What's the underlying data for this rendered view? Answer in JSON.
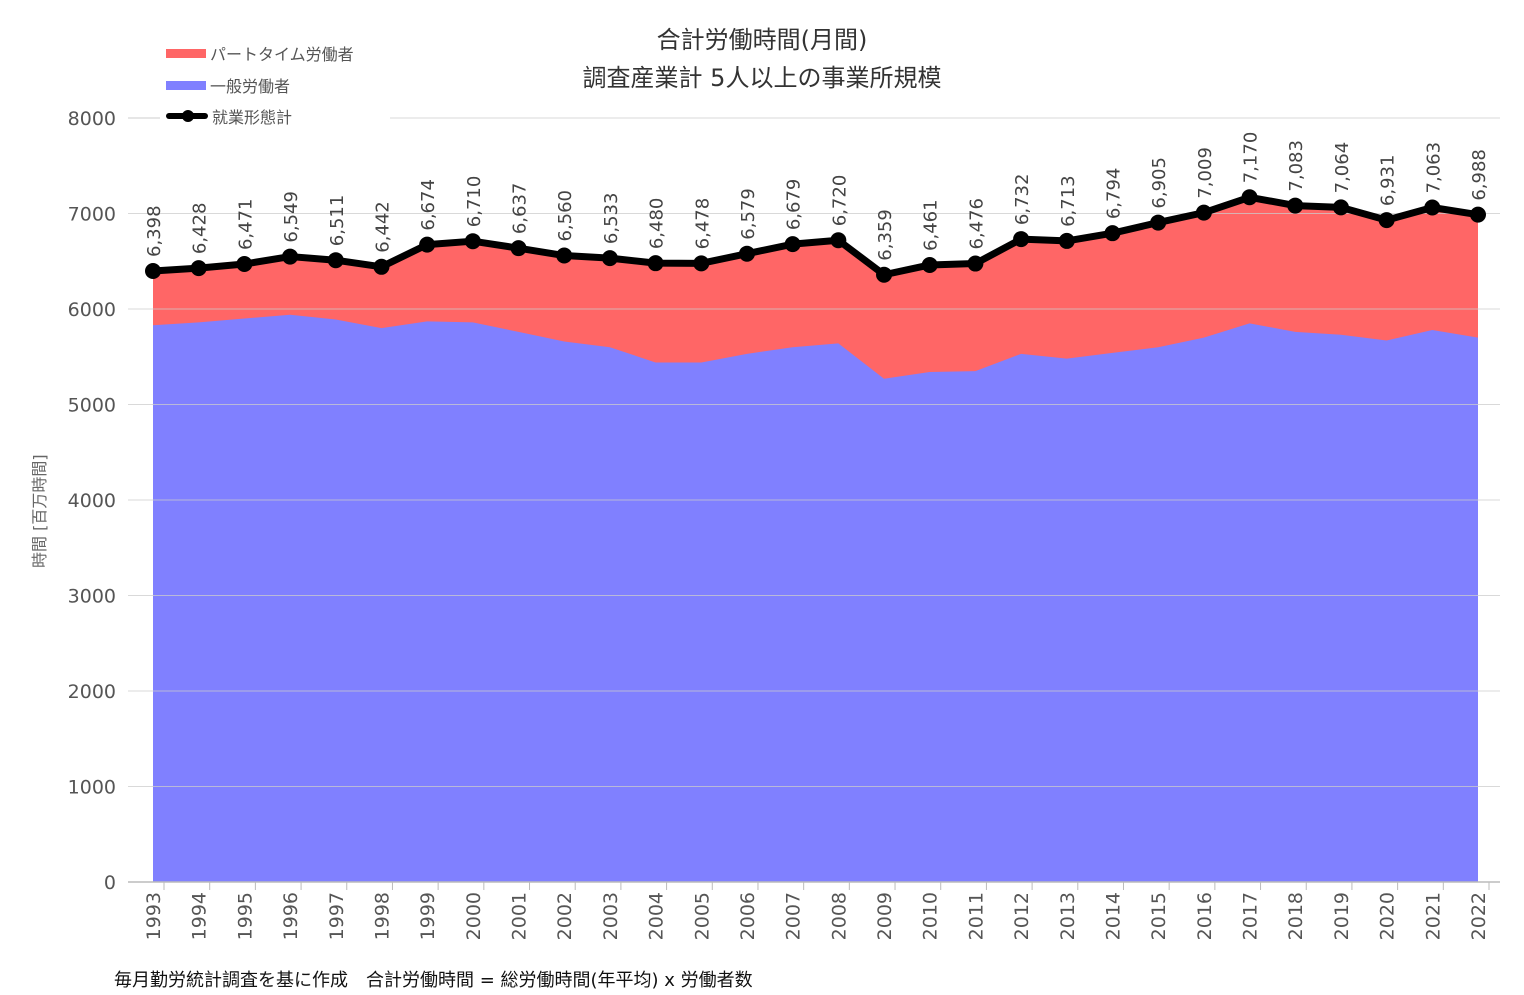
{
  "title_line1": "合計労働時間(月間)",
  "title_line2": "調査産業計 5人以上の事業所規模",
  "y_axis_label": "時間 [百万時間]",
  "footer_text": "毎月勤労統計調査を基に作成　合計労働時間 = 総労働時間(年平均) x 労働者数",
  "legend": [
    {
      "label": "パートタイム労働者",
      "color": "#ff6666"
    },
    {
      "label": "一般労働者",
      "color": "#8080ff"
    },
    {
      "label": "就業形態計",
      "color": "#000000"
    }
  ],
  "chart_data": {
    "type": "area",
    "ylim": [
      0,
      8000
    ],
    "yticks": [
      0,
      1000,
      2000,
      3000,
      4000,
      5000,
      6000,
      7000,
      8000
    ],
    "grid": true,
    "legend_position": "top-left",
    "categories": [
      "1993",
      "1994",
      "1995",
      "1996",
      "1997",
      "1998",
      "1999",
      "2000",
      "2001",
      "2002",
      "2003",
      "2004",
      "2005",
      "2006",
      "2007",
      "2008",
      "2009",
      "2010",
      "2011",
      "2012",
      "2013",
      "2014",
      "2015",
      "2016",
      "2017",
      "2018",
      "2019",
      "2020",
      "2021",
      "2022"
    ],
    "series": [
      {
        "name": "一般労働者",
        "type": "area",
        "color": "#8080ff",
        "values": [
          5830,
          5860,
          5900,
          5940,
          5890,
          5800,
          5870,
          5860,
          5760,
          5660,
          5600,
          5440,
          5440,
          5530,
          5600,
          5640,
          5270,
          5340,
          5350,
          5530,
          5480,
          5540,
          5600,
          5700,
          5850,
          5760,
          5730,
          5670,
          5780,
          5700
        ]
      },
      {
        "name": "パートタイム労働者",
        "type": "area",
        "color": "#ff6666",
        "values": [
          568,
          568,
          571,
          609,
          621,
          642,
          804,
          850,
          877,
          900,
          933,
          1040,
          1038,
          1049,
          1079,
          1080,
          1089,
          1121,
          1126,
          1202,
          1233,
          1254,
          1305,
          1309,
          1320,
          1323,
          1334,
          1261,
          1283,
          1288
        ]
      },
      {
        "name": "就業形態計",
        "type": "line",
        "color": "#000000",
        "values": [
          6398,
          6428,
          6471,
          6549,
          6511,
          6442,
          6674,
          6710,
          6637,
          6560,
          6533,
          6480,
          6478,
          6579,
          6679,
          6720,
          6359,
          6461,
          6476,
          6732,
          6713,
          6794,
          6905,
          7009,
          7170,
          7083,
          7064,
          6931,
          7063,
          6988
        ],
        "labels": [
          "6,398",
          "6,428",
          "6,471",
          "6,549",
          "6,511",
          "6,442",
          "6,674",
          "6,710",
          "6,637",
          "6,560",
          "6,533",
          "6,480",
          "6,478",
          "6,579",
          "6,679",
          "6,720",
          "6,359",
          "6,461",
          "6,476",
          "6,732",
          "6,713",
          "6,794",
          "6,905",
          "7,009",
          "7,170",
          "7,083",
          "7,064",
          "6,931",
          "7,063",
          "6,988"
        ]
      }
    ]
  }
}
